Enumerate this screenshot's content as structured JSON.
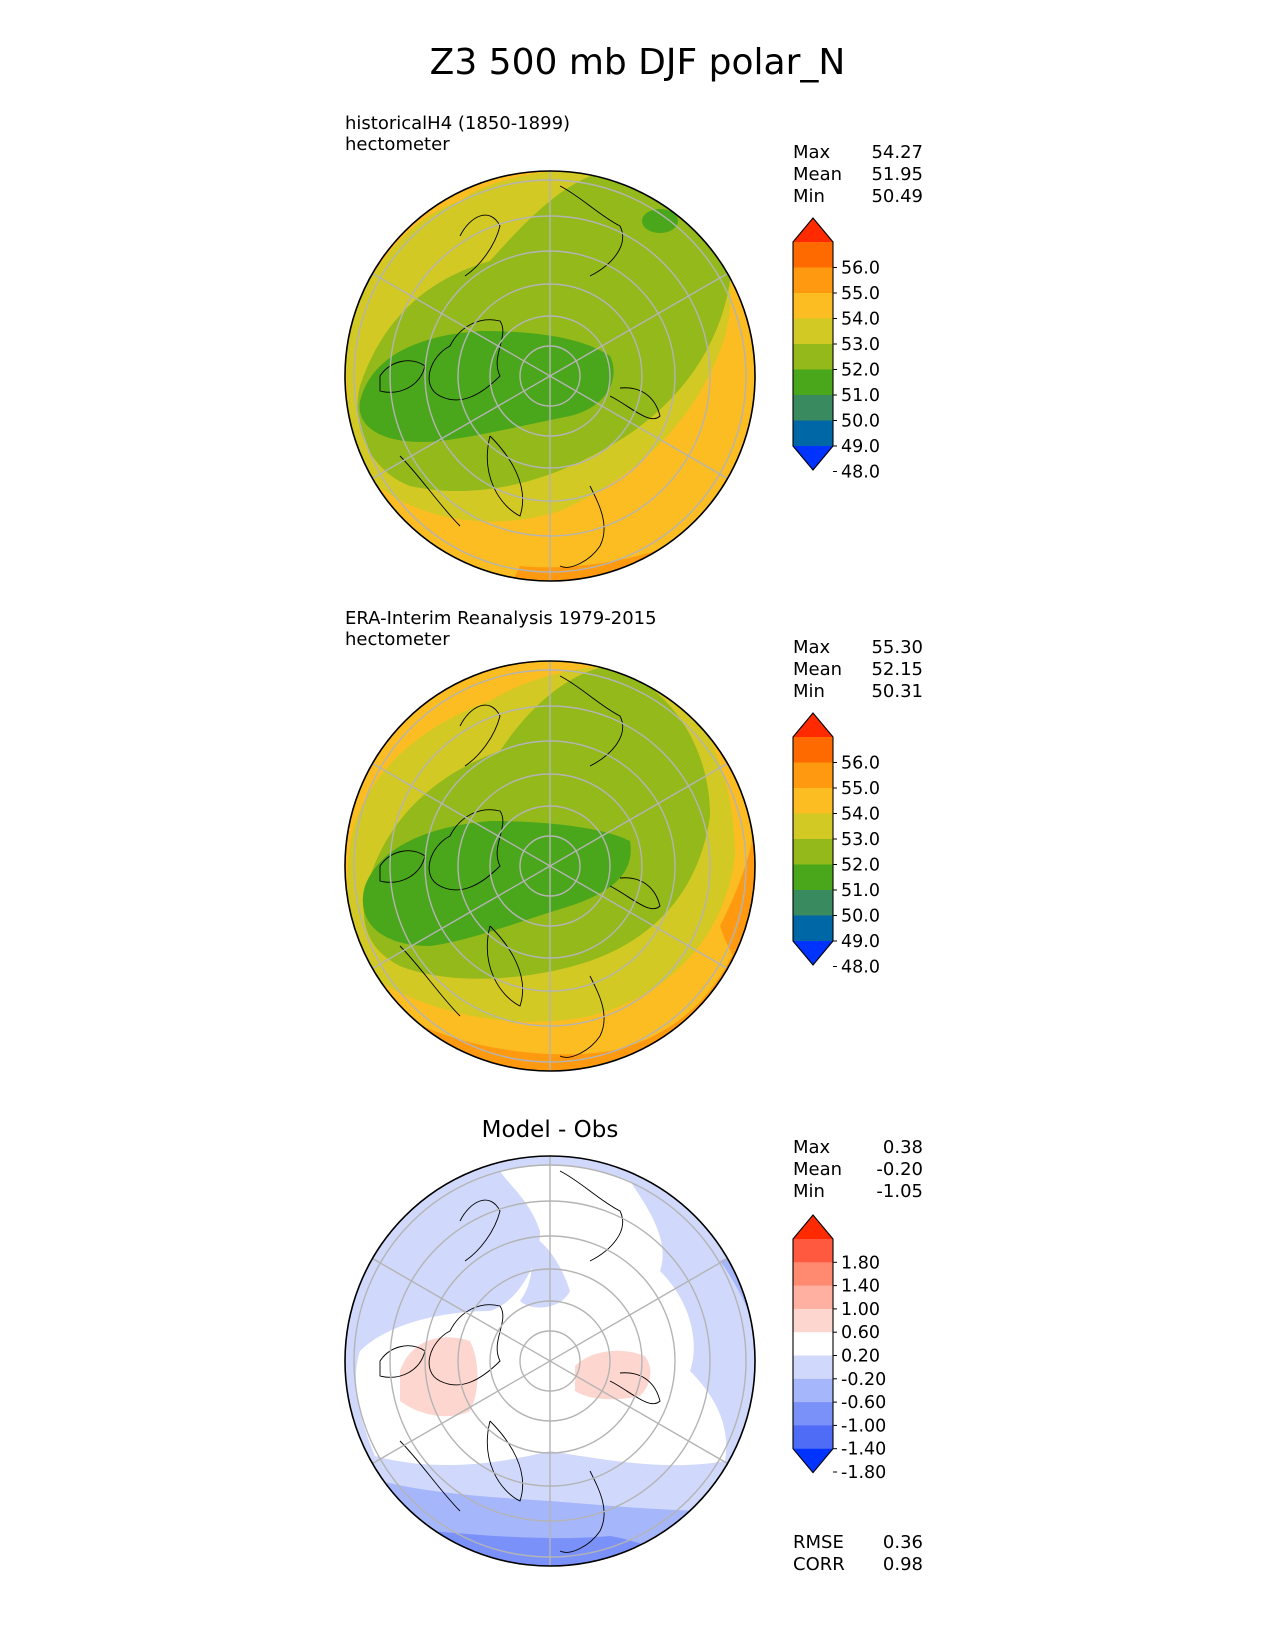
{
  "figure": {
    "title": "Z3 500 mb DJF polar_N"
  },
  "panels": [
    {
      "title": "historicalH4 (1850-1899)",
      "units": "hectometer",
      "stats": {
        "max_label": "Max",
        "max": "54.27",
        "mean_label": "Mean",
        "mean": "51.95",
        "min_label": "Min",
        "min": "50.49"
      },
      "colorbar": {
        "ticks": [
          "56.0",
          "55.0",
          "54.0",
          "53.0",
          "52.0",
          "51.0",
          "50.0",
          "49.0",
          "48.0"
        ],
        "colors": [
          "#ff2a00",
          "#ff6a00",
          "#ff9a10",
          "#fbbd22",
          "#d2c924",
          "#93b91a",
          "#4aa61b",
          "#3a8a5f",
          "#0067a6",
          "#0033ff"
        ]
      }
    },
    {
      "title": "ERA-Interim Reanalysis 1979-2015",
      "units": "hectometer",
      "stats": {
        "max_label": "Max",
        "max": "55.30",
        "mean_label": "Mean",
        "mean": "52.15",
        "min_label": "Min",
        "min": "50.31"
      },
      "colorbar": {
        "ticks": [
          "56.0",
          "55.0",
          "54.0",
          "53.0",
          "52.0",
          "51.0",
          "50.0",
          "49.0",
          "48.0"
        ],
        "colors": [
          "#ff2a00",
          "#ff6a00",
          "#ff9a10",
          "#fbbd22",
          "#d2c924",
          "#93b91a",
          "#4aa61b",
          "#3a8a5f",
          "#0067a6",
          "#0033ff"
        ]
      }
    },
    {
      "title": "Model - Obs",
      "stats": {
        "max_label": "Max",
        "max": "0.38",
        "mean_label": "Mean",
        "mean": "-0.20",
        "min_label": "Min",
        "min": "-1.05"
      },
      "colorbar": {
        "ticks": [
          "1.80",
          "1.40",
          "1.00",
          "0.60",
          "0.20",
          "-0.20",
          "-0.60",
          "-1.00",
          "-1.40",
          "-1.80"
        ],
        "colors": [
          "#ff2a00",
          "#ff5a40",
          "#ff8a70",
          "#ffb0a0",
          "#fdd6d0",
          "#ffffff",
          "#d0d9fb",
          "#a6b6fb",
          "#7b91fa",
          "#4f6cf7",
          "#0033ff"
        ]
      },
      "metrics": {
        "rmse_label": "RMSE",
        "rmse": "0.36",
        "corr_label": "CORR",
        "corr": "0.98"
      }
    }
  ]
}
